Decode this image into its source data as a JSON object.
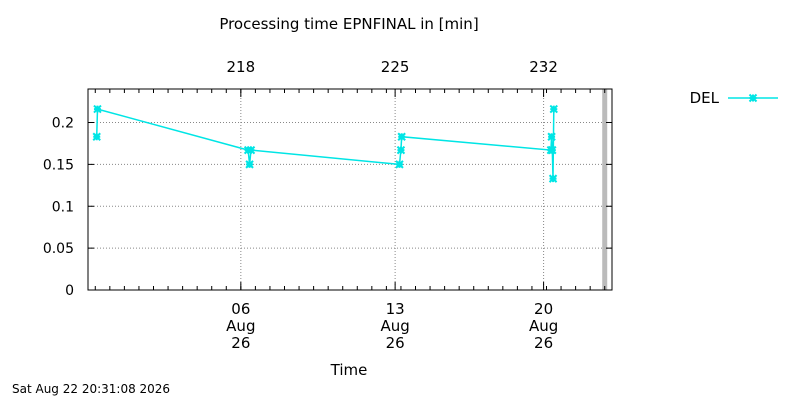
{
  "chart_data": {
    "type": "line",
    "title": "Processing time EPNFINAL in [min]",
    "xlabel": "Time",
    "ylabel": "",
    "ylim": [
      0,
      0.24
    ],
    "yticks": [
      {
        "value": 0,
        "label": "0"
      },
      {
        "value": 0.05,
        "label": "0.05"
      },
      {
        "value": 0.1,
        "label": "0.1"
      },
      {
        "value": 0.15,
        "label": "0.15"
      },
      {
        "value": 0.2,
        "label": "0.2"
      }
    ],
    "xlim": [
      -0.5,
      35.5
    ],
    "xticks": [
      {
        "value": 10,
        "lines": [
          "06",
          "Aug",
          "26"
        ]
      },
      {
        "value": 20.6,
        "lines": [
          "13",
          "Aug",
          "26"
        ]
      },
      {
        "value": 30.8,
        "lines": [
          "20",
          "Aug",
          "26"
        ]
      }
    ],
    "x2ticks": [
      {
        "value": 10,
        "label": "218"
      },
      {
        "value": 20.6,
        "label": "225"
      },
      {
        "value": 30.8,
        "label": "232"
      }
    ],
    "grid": true,
    "legend": {
      "position": "top-right",
      "entries": [
        "DEL"
      ]
    },
    "highlight_x": 35,
    "series": [
      {
        "name": "DEL",
        "color": "#00e5e5",
        "points": [
          {
            "x": 0.1,
            "y": 0.183
          },
          {
            "x": 0.15,
            "y": 0.216
          },
          {
            "x": 10.5,
            "y": 0.167
          },
          {
            "x": 10.6,
            "y": 0.15
          },
          {
            "x": 10.7,
            "y": 0.167
          },
          {
            "x": 20.9,
            "y": 0.15
          },
          {
            "x": 21.0,
            "y": 0.167
          },
          {
            "x": 21.05,
            "y": 0.183
          },
          {
            "x": 31.3,
            "y": 0.167
          },
          {
            "x": 31.35,
            "y": 0.183
          },
          {
            "x": 31.4,
            "y": 0.167
          },
          {
            "x": 31.45,
            "y": 0.133
          },
          {
            "x": 31.5,
            "y": 0.216
          }
        ]
      }
    ]
  },
  "footer": {
    "timestamp": "Sat Aug 22 20:31:08 2026"
  }
}
